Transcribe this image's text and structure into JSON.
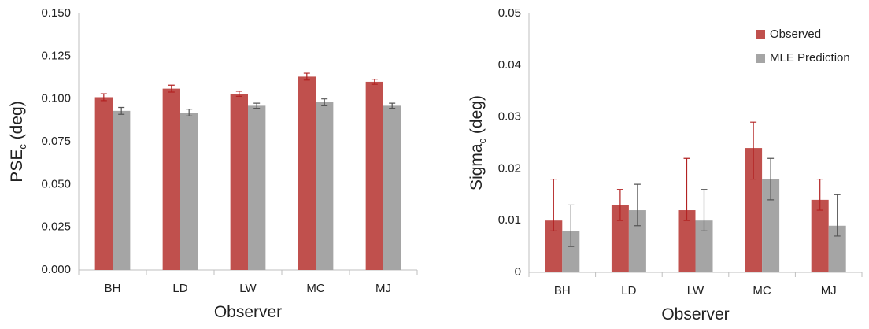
{
  "chart_data": [
    {
      "type": "bar",
      "y_label": [
        "PSE",
        "c",
        " (deg)"
      ],
      "x_label": "Observer",
      "categories": [
        "BH",
        "LD",
        "LW",
        "MC",
        "MJ"
      ],
      "series": [
        {
          "color": "#c0504d",
          "values": [
            0.101,
            0.106,
            0.103,
            0.113,
            0.11
          ],
          "error_low": [
            0.002,
            0.002,
            0.0015,
            0.002,
            0.0015
          ],
          "error_high": [
            0.002,
            0.002,
            0.0015,
            0.002,
            0.0015
          ]
        },
        {
          "color": "#a5a5a5",
          "values": [
            0.093,
            0.092,
            0.096,
            0.098,
            0.096
          ],
          "error_low": [
            0.002,
            0.002,
            0.0015,
            0.002,
            0.0015
          ],
          "error_high": [
            0.002,
            0.002,
            0.0015,
            0.002,
            0.0015
          ]
        }
      ],
      "ylim": [
        0,
        0.15
      ],
      "yticks": [
        {
          "value": 0,
          "label": "0.000"
        },
        {
          "value": 0.025,
          "label": "0.025"
        },
        {
          "value": 0.05,
          "label": "0.050"
        },
        {
          "value": 0.075,
          "label": "0.075"
        },
        {
          "value": 0.1,
          "label": "0.100"
        },
        {
          "value": 0.125,
          "label": "0.125"
        },
        {
          "value": 0.15,
          "label": "0.150"
        }
      ]
    },
    {
      "type": "bar",
      "y_label": [
        "Sigma",
        "c",
        " (deg)"
      ],
      "x_label": "Observer",
      "categories": [
        "BH",
        "LD",
        "LW",
        "MC",
        "MJ"
      ],
      "series": [
        {
          "name": "Observed",
          "color": "#c0504d",
          "values": [
            0.01,
            0.013,
            0.012,
            0.024,
            0.014
          ],
          "error_low": [
            0.002,
            0.003,
            0.002,
            0.006,
            0.002
          ],
          "error_high": [
            0.008,
            0.003,
            0.01,
            0.005,
            0.004
          ]
        },
        {
          "name": "MLE Prediction",
          "color": "#a5a5a5",
          "values": [
            0.008,
            0.012,
            0.01,
            0.018,
            0.009
          ],
          "error_low": [
            0.003,
            0.003,
            0.002,
            0.004,
            0.002
          ],
          "error_high": [
            0.005,
            0.005,
            0.006,
            0.004,
            0.006
          ]
        }
      ],
      "legend": "top-right",
      "ylim": [
        0,
        0.05
      ],
      "yticks": [
        0,
        0.01,
        0.02,
        0.03,
        0.04,
        0.05
      ]
    }
  ]
}
